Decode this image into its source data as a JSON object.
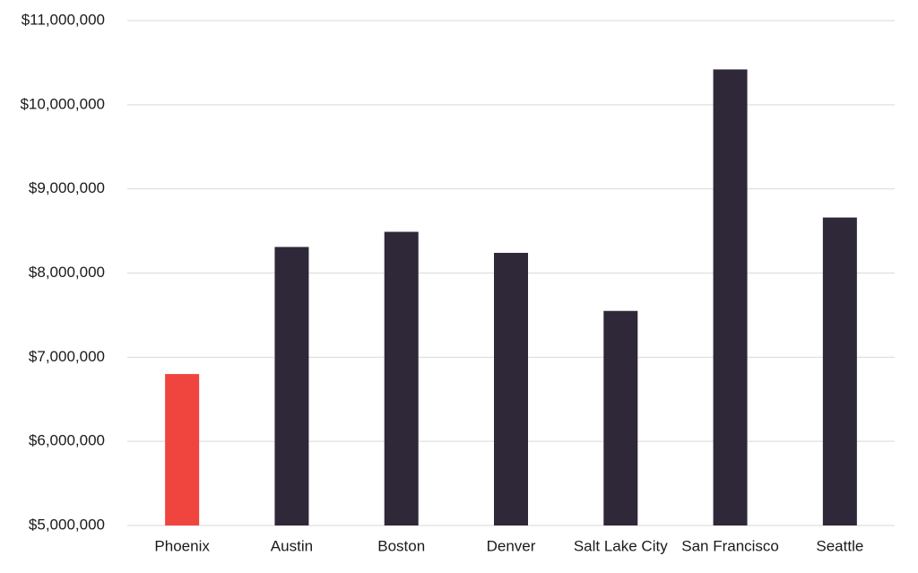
{
  "chart_data": {
    "type": "bar",
    "categories": [
      "Phoenix",
      "Austin",
      "Boston",
      "Denver",
      "Salt Lake City",
      "San Francisco",
      "Seattle"
    ],
    "values": [
      6800000,
      8310000,
      8490000,
      8240000,
      7550000,
      10420000,
      8660000
    ],
    "colors": [
      "#f0443e",
      "#2f2838",
      "#2f2838",
      "#2f2838",
      "#2f2838",
      "#2f2838",
      "#2f2838"
    ],
    "ylim": [
      5000000,
      11000000
    ],
    "yticks": [
      {
        "value": 5000000,
        "label": "$5,000,000"
      },
      {
        "value": 6000000,
        "label": "$6,000,000"
      },
      {
        "value": 7000000,
        "label": "$7,000,000"
      },
      {
        "value": 8000000,
        "label": "$8,000,000"
      },
      {
        "value": 9000000,
        "label": "$9,000,000"
      },
      {
        "value": 10000000,
        "label": "$10,000,000"
      },
      {
        "value": 11000000,
        "label": "$11,000,000"
      }
    ],
    "grid": true
  }
}
